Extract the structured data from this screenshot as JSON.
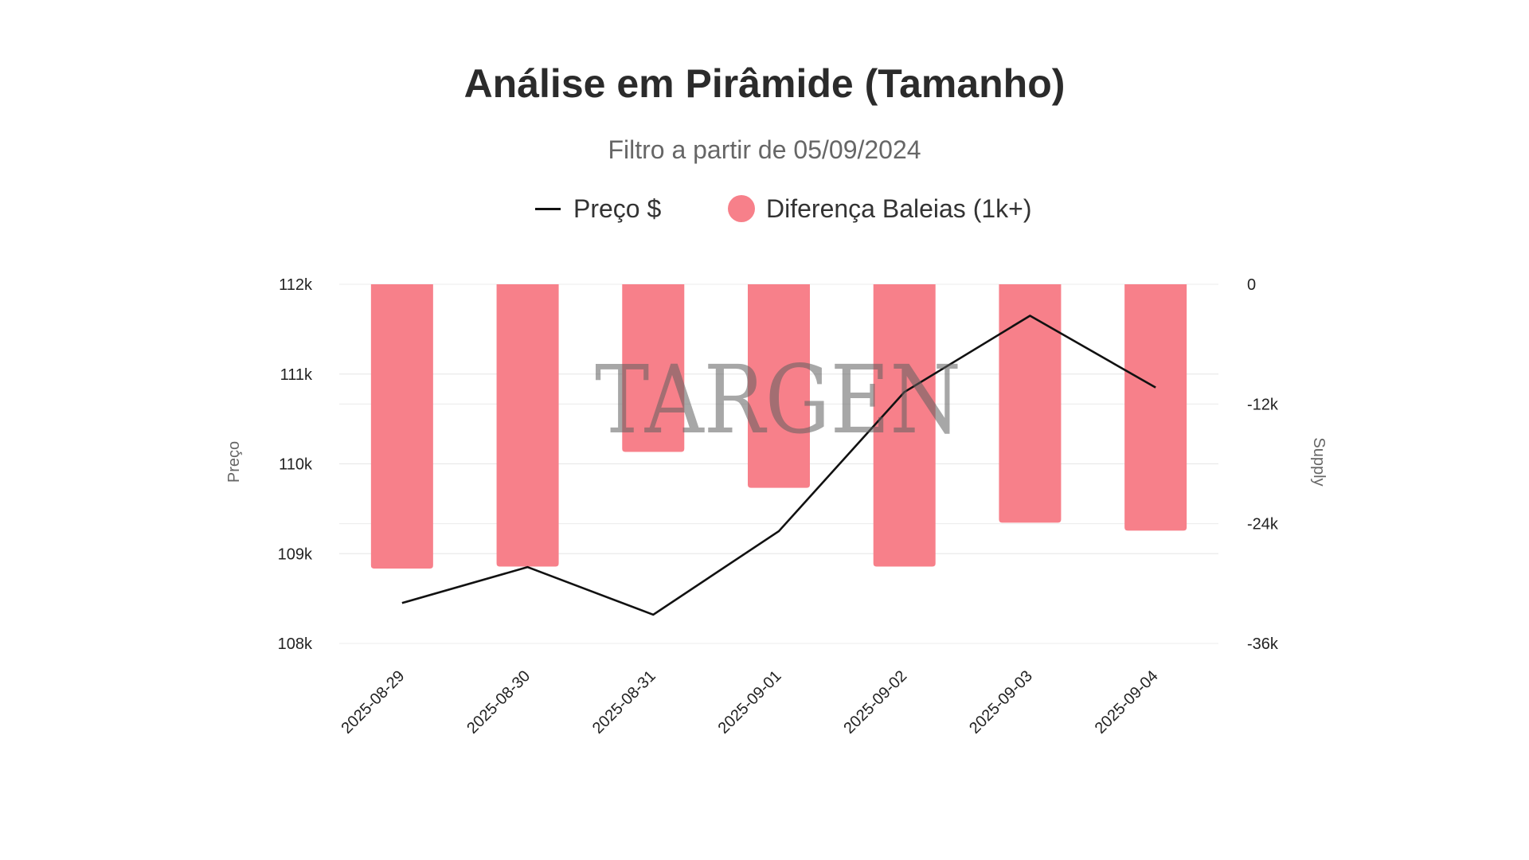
{
  "chart_data": {
    "type": "bar",
    "title": "Análise em Pirâmide (Tamanho)",
    "subtitle": "Filtro a partir de 05/09/2024",
    "categories": [
      "2025-08-29",
      "2025-08-30",
      "2025-08-31",
      "2025-09-01",
      "2025-09-02",
      "2025-09-03",
      "2025-09-04"
    ],
    "series": [
      {
        "name": "Preço $",
        "type": "line",
        "axis": "left",
        "color": "#111111",
        "values": [
          108450,
          108850,
          108320,
          109250,
          110800,
          111650,
          110850
        ]
      },
      {
        "name": "Diferença Baleias (1k+)",
        "type": "bar",
        "axis": "right",
        "color": "#f7808a",
        "values": [
          -28500,
          -28300,
          -16800,
          -20400,
          -28300,
          -23900,
          -24700
        ]
      }
    ],
    "ylabel_left": "Preço",
    "ylabel_right": "Supply",
    "ylim_left": [
      108000,
      112000
    ],
    "ylim_right": [
      -36000,
      0
    ],
    "yticks_left": [
      "108k",
      "109k",
      "110k",
      "111k",
      "112k"
    ],
    "yticks_right": [
      "-36k",
      "-24k",
      "-12k",
      "0"
    ],
    "grid": true,
    "legend_position": "top-center",
    "watermark": "TARGEN"
  }
}
